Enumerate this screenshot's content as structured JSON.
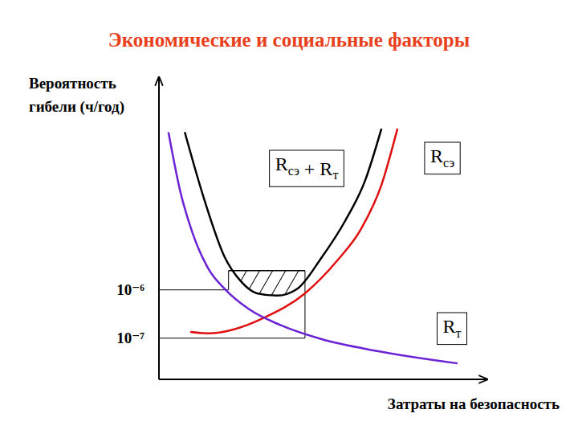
{
  "chart_data": {
    "type": "line",
    "title": "Экономические и социальные факторы",
    "x_label": "Затраты на безопасность",
    "y_label": "Вероятность гибели (ч/год)",
    "xlim": [
      0,
      100
    ],
    "ylim": [
      1.4e-08,
      0.022
    ],
    "log": "y",
    "yticks": [
      {
        "value": 1e-06,
        "label": "10⁻⁶"
      },
      {
        "value": 1e-07,
        "label": "10⁻⁷"
      }
    ],
    "tick_labels": "y",
    "series": [
      {
        "name": "Rсэ + Rт",
        "color": "#000000",
        "x": [
          7.9,
          14.0,
          20.1,
          25.1,
          30.0,
          36.1,
          42.3,
          49.6,
          57.0,
          63.1,
          68.1
        ],
        "values": [
          0.00186,
          7e-05,
          4.8e-06,
          1.5e-06,
          8.5e-07,
          7.6e-07,
          1.05e-06,
          4.5e-06,
          2.7e-05,
          0.000185,
          0.0022
        ]
      },
      {
        "name": "Rсэ",
        "color": "#e01010",
        "x": [
          9.6,
          15.2,
          22.6,
          32.4,
          44.7,
          54.5,
          61.9,
          68.1,
          73.0
        ],
        "values": [
          1.35e-07,
          1.26e-07,
          1.5e-07,
          2.7e-07,
          8.5e-07,
          4e-06,
          1.85e-05,
          0.00015,
          0.0022
        ]
      },
      {
        "name": "Rт",
        "color": "#6a22d4",
        "x": [
          2.9,
          6.6,
          10.3,
          15.2,
          20.1,
          27.5,
          37.3,
          49.6,
          66.8,
          91.4
        ],
        "values": [
          0.00186,
          0.000105,
          1.5e-05,
          2.7e-06,
          1.05e-06,
          4e-07,
          1.85e-07,
          9.6e-08,
          5.4e-08,
          3e-08
        ]
      }
    ],
    "hatched_region": {
      "x": [
        21.3,
        44.7
      ],
      "y": 2.5e-06
    }
  }
}
